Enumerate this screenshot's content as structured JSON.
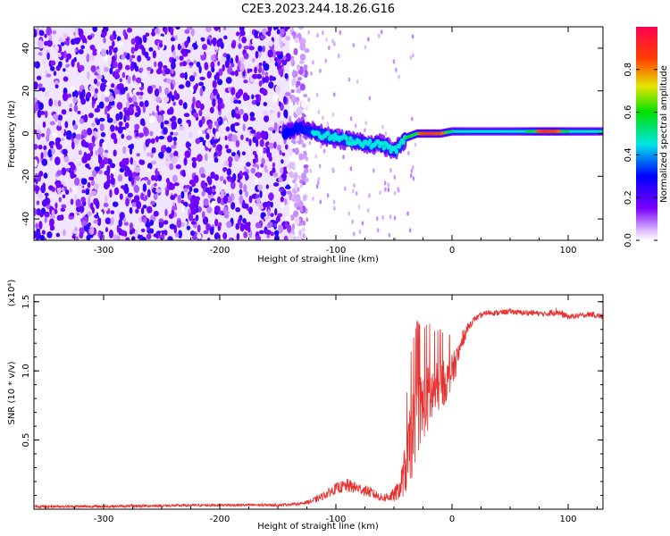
{
  "title": "C2E3.2023.244.18.26.G16",
  "chart_data": [
    {
      "type": "heatmap",
      "panel": "spectrogram",
      "xlabel": "Height of straight line (km)",
      "ylabel": "Frequency (Hz)",
      "xlim": [
        -360,
        130
      ],
      "ylim": [
        -50,
        50
      ],
      "x_ticks": [
        -300,
        -200,
        -100,
        0,
        100
      ],
      "x_tick_labels": [
        "-300",
        "-200",
        "-100",
        "0",
        "100"
      ],
      "y_ticks": [
        -40,
        -20,
        0,
        20,
        40
      ],
      "y_tick_labels": [
        "-40",
        "-20",
        "0",
        "20",
        "40"
      ],
      "colorbar": {
        "label": "Normalized spectral amplitude",
        "range": [
          0,
          1
        ],
        "ticks": [
          0.0,
          0.2,
          0.4,
          0.6,
          0.8
        ],
        "tick_labels": [
          "0.0",
          "0.2",
          "0.4",
          "0.6",
          "0.8"
        ]
      },
      "noise_region_x": [
        -360,
        -140
      ],
      "noise_region_amplitude": 0.3,
      "signal_trace": {
        "x": [
          -145,
          -130,
          -120,
          -110,
          -100,
          -90,
          -80,
          -70,
          -60,
          -50,
          -45,
          -40,
          -30,
          -20,
          -10,
          0,
          20,
          40,
          60,
          80,
          90,
          100,
          130
        ],
        "y": [
          0,
          3,
          1,
          -1,
          -2,
          -3,
          -4,
          -5,
          -5,
          -8,
          -6,
          -2,
          0,
          0,
          0,
          1,
          1,
          1,
          1,
          1,
          1,
          1,
          1
        ],
        "amplitude": [
          0.3,
          0.35,
          0.45,
          0.5,
          0.45,
          0.5,
          0.5,
          0.45,
          0.5,
          0.45,
          0.55,
          0.6,
          0.7,
          0.8,
          0.75,
          0.6,
          0.5,
          0.5,
          0.55,
          0.8,
          0.75,
          0.6,
          0.55
        ]
      }
    },
    {
      "type": "line",
      "panel": "snr",
      "xlabel": "Height of straight line (km)",
      "ylabel": "SNR (10 * v/v)",
      "y_multiplier": "(x10⁴)",
      "xlim": [
        -360,
        130
      ],
      "ylim": [
        0,
        1.55
      ],
      "x_ticks": [
        -300,
        -200,
        -100,
        0,
        100
      ],
      "x_tick_labels": [
        "-300",
        "-200",
        "-100",
        "0",
        "100"
      ],
      "y_ticks": [
        0.5,
        1.0,
        1.5
      ],
      "y_tick_labels": [
        "0.5",
        "1.0",
        "1.5"
      ],
      "series": [
        {
          "color": "#e8312e",
          "x": [
            -360,
            -300,
            -200,
            -150,
            -130,
            -120,
            -110,
            -100,
            -90,
            -80,
            -70,
            -60,
            -50,
            -45,
            -40,
            -35,
            -30,
            -25,
            -20,
            -15,
            -10,
            -5,
            0,
            5,
            10,
            15,
            20,
            30,
            40,
            50,
            60,
            70,
            80,
            90,
            100,
            110,
            120,
            130
          ],
          "y": [
            0.02,
            0.02,
            0.03,
            0.03,
            0.04,
            0.06,
            0.1,
            0.15,
            0.17,
            0.15,
            0.12,
            0.08,
            0.1,
            0.15,
            0.3,
            0.5,
            0.7,
            0.75,
            0.8,
            0.85,
            0.9,
            0.92,
            1.0,
            1.1,
            1.25,
            1.33,
            1.38,
            1.42,
            1.42,
            1.43,
            1.42,
            1.42,
            1.41,
            1.43,
            1.39,
            1.4,
            1.41,
            1.39
          ],
          "noise": [
            0.01,
            0.01,
            0.01,
            0.01,
            0.01,
            0.02,
            0.03,
            0.04,
            0.05,
            0.04,
            0.04,
            0.03,
            0.05,
            0.08,
            0.2,
            0.3,
            0.3,
            0.25,
            0.25,
            0.2,
            0.18,
            0.15,
            0.12,
            0.1,
            0.06,
            0.03,
            0.02,
            0.02,
            0.02,
            0.02,
            0.02,
            0.02,
            0.02,
            0.03,
            0.02,
            0.02,
            0.02,
            0.02
          ]
        }
      ]
    }
  ]
}
